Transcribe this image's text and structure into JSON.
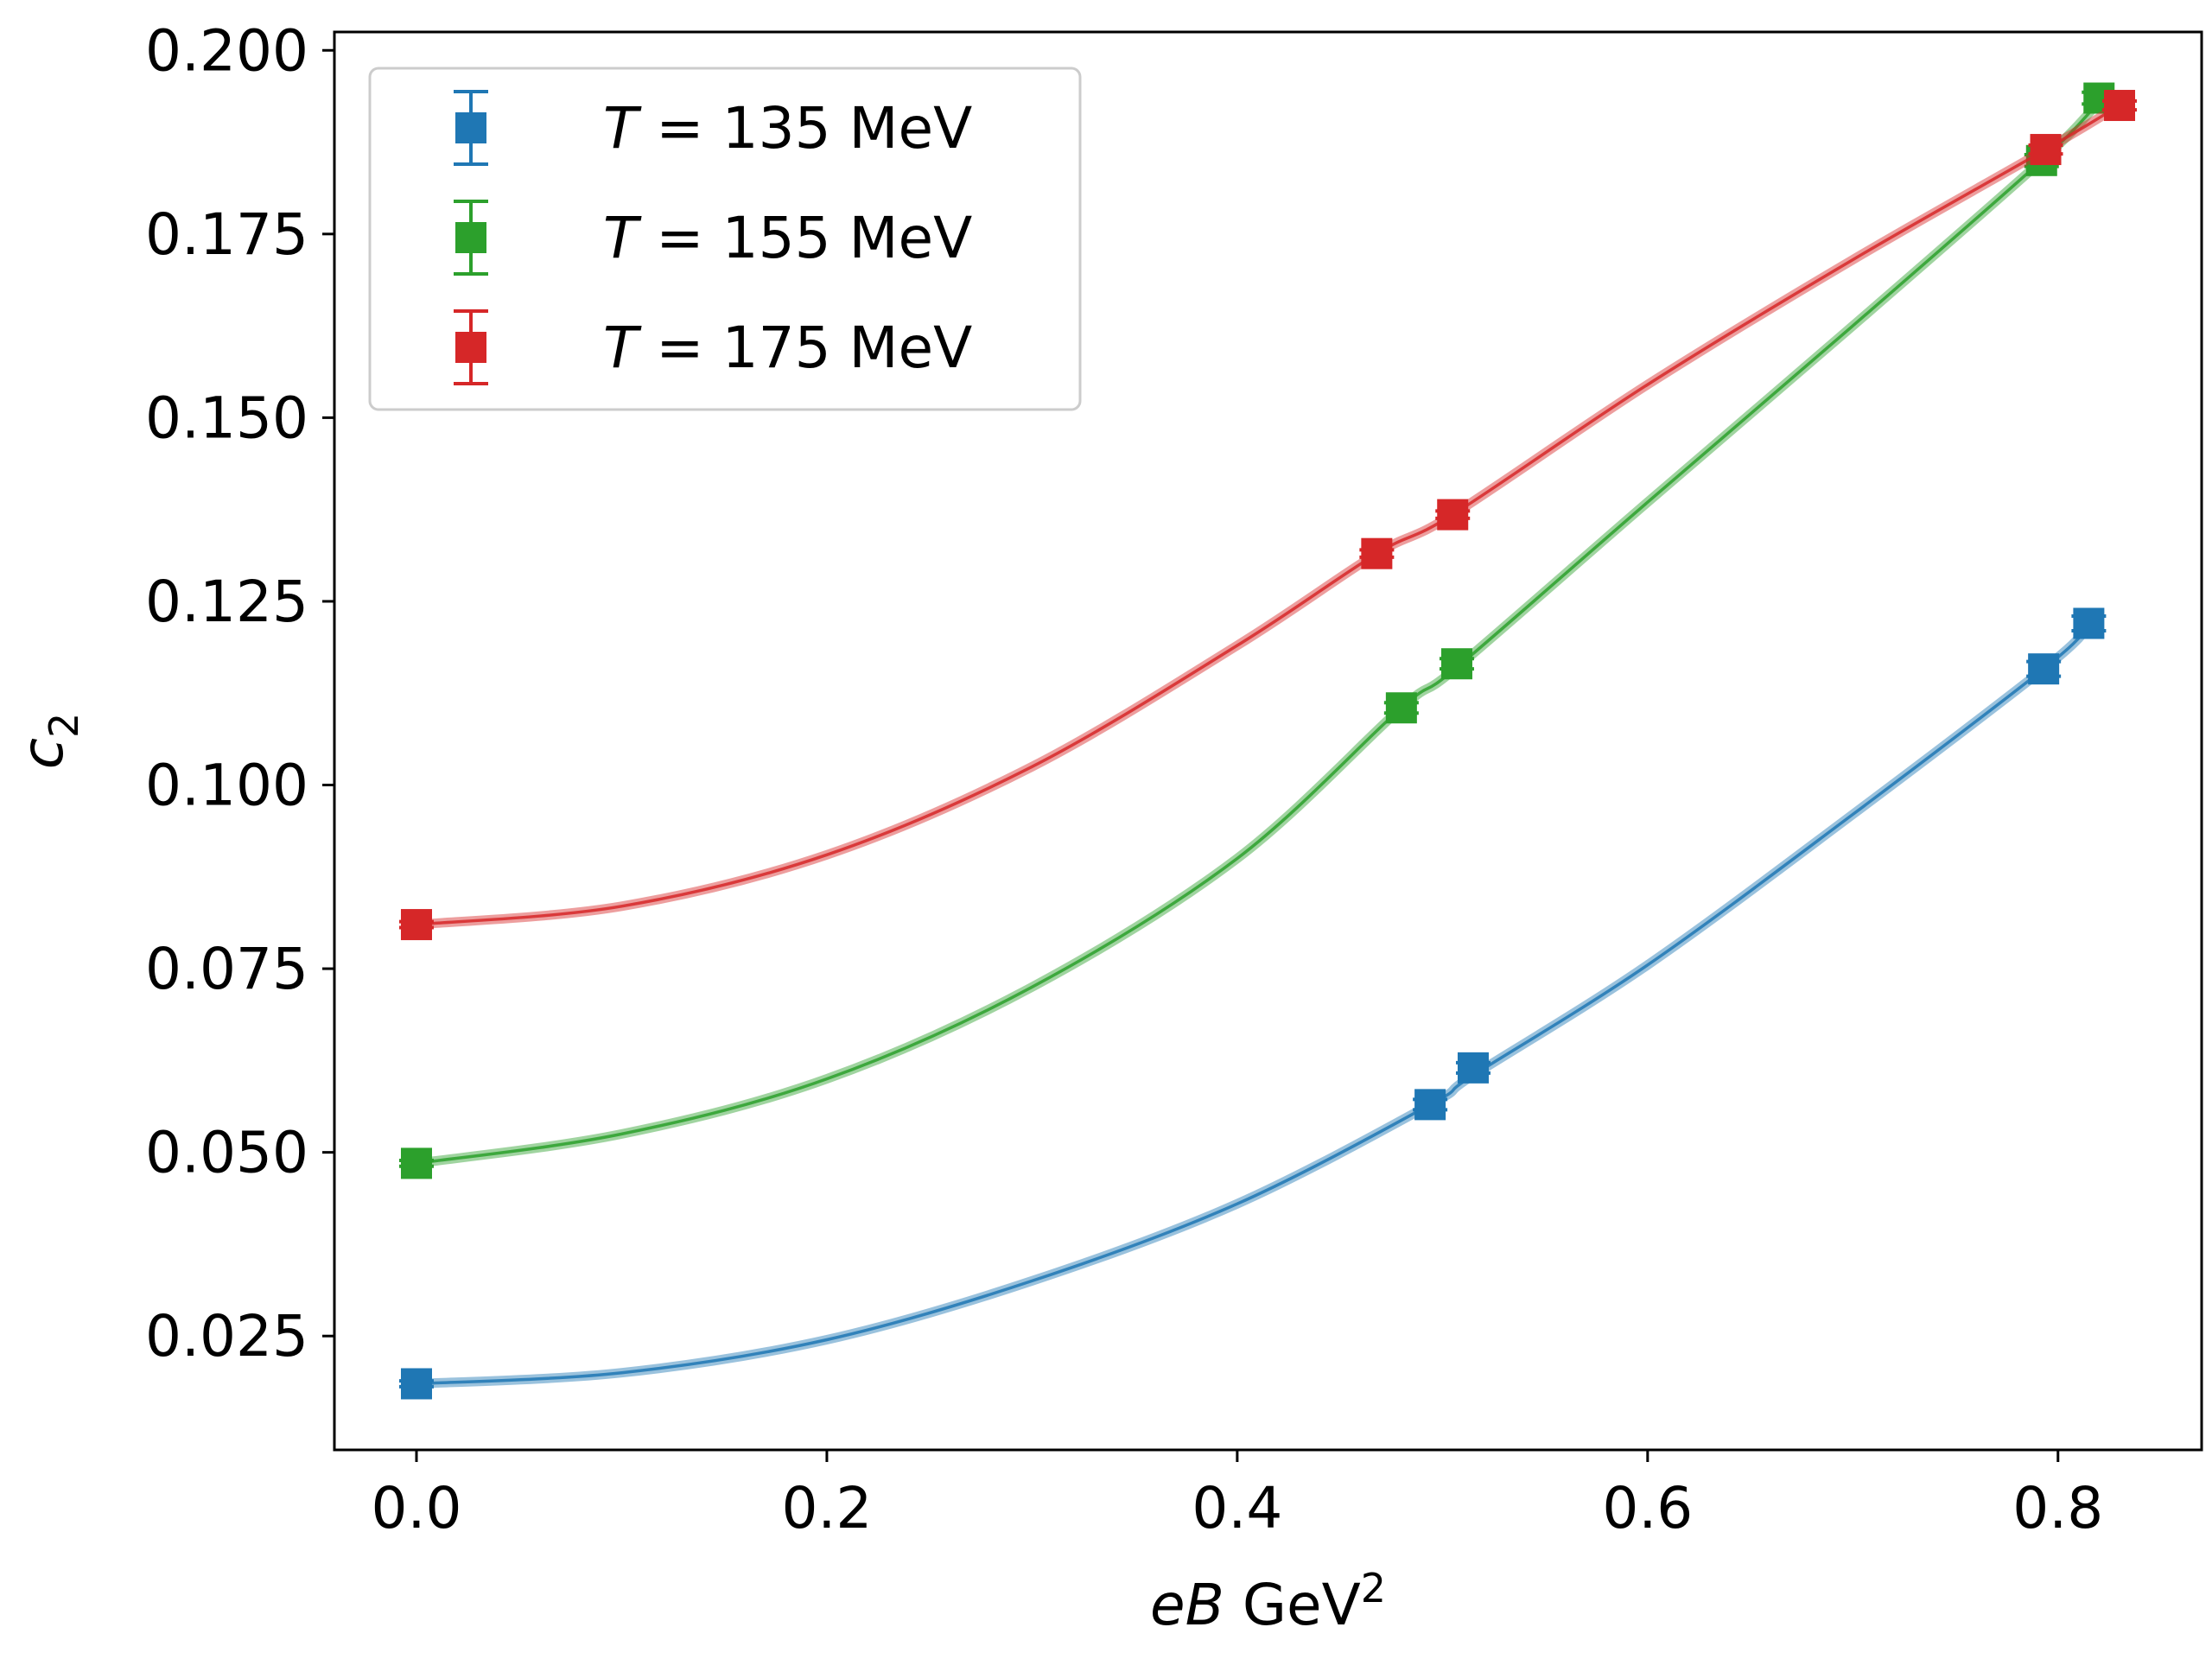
{
  "chart_data": {
    "type": "scatter",
    "title": "",
    "xlabel": {
      "italic": "eB",
      "unit": "GeV",
      "sup": "2"
    },
    "ylabel": {
      "base": "c",
      "sub": "2"
    },
    "xlim": [
      -0.04,
      0.87
    ],
    "ylim": [
      0.0095,
      0.2025
    ],
    "xticks": [
      0.0,
      0.2,
      0.4,
      0.6,
      0.8
    ],
    "xtick_labels": [
      "0.0",
      "0.2",
      "0.4",
      "0.6",
      "0.8"
    ],
    "yticks": [
      0.025,
      0.05,
      0.075,
      0.1,
      0.125,
      0.15,
      0.175,
      0.2
    ],
    "ytick_labels": [
      "0.025",
      "0.050",
      "0.075",
      "0.100",
      "0.125",
      "0.150",
      "0.175",
      "0.200"
    ],
    "grid": false,
    "legend_position": "top-left",
    "series": [
      {
        "name": "T = 135 MeV",
        "legend_italic": "T",
        "legend_rest": "= 135 MeV",
        "color": "#1f77b4",
        "x": [
          0.0,
          0.494,
          0.515,
          0.793,
          0.815
        ],
        "y": [
          0.0185,
          0.0565,
          0.0615,
          0.1158,
          0.122
        ],
        "yerr": [
          0.0004,
          0.0007,
          0.0007,
          0.001,
          0.001
        ],
        "fit_x": [
          0.0,
          0.1,
          0.2,
          0.3,
          0.4,
          0.494,
          0.515,
          0.6,
          0.7,
          0.793,
          0.815
        ],
        "fit_y": [
          0.0185,
          0.02,
          0.0245,
          0.0325,
          0.043,
          0.0565,
          0.0605,
          0.0755,
          0.096,
          0.1158,
          0.1215
        ]
      },
      {
        "name": "T = 155 MeV",
        "legend_italic": "T",
        "legend_rest": "= 155 MeV",
        "color": "#2ca02c",
        "x": [
          0.0,
          0.48,
          0.507,
          0.792,
          0.82
        ],
        "y": [
          0.0485,
          0.1105,
          0.1165,
          0.185,
          0.1935
        ],
        "yerr": [
          0.0004,
          0.0007,
          0.0007,
          0.0008,
          0.0008
        ],
        "fit_x": [
          0.0,
          0.1,
          0.2,
          0.3,
          0.4,
          0.48,
          0.507,
          0.6,
          0.7,
          0.792,
          0.82
        ],
        "fit_y": [
          0.0485,
          0.0525,
          0.06,
          0.0725,
          0.09,
          0.1105,
          0.116,
          0.1385,
          0.1625,
          0.185,
          0.193
        ]
      },
      {
        "name": "T = 175 MeV",
        "legend_italic": "T",
        "legend_rest": "= 175 MeV",
        "color": "#d62728",
        "x": [
          0.0,
          0.468,
          0.505,
          0.794,
          0.83
        ],
        "y": [
          0.081,
          0.1315,
          0.1368,
          0.1865,
          0.1925
        ],
        "yerr": [
          0.0004,
          0.0005,
          0.0005,
          0.0006,
          0.0006
        ],
        "fit_x": [
          0.0,
          0.1,
          0.2,
          0.3,
          0.4,
          0.468,
          0.505,
          0.6,
          0.7,
          0.794,
          0.83
        ],
        "fit_y": [
          0.081,
          0.0835,
          0.0905,
          0.1025,
          0.119,
          0.1315,
          0.1368,
          0.1545,
          0.1715,
          0.1865,
          0.1925
        ]
      }
    ]
  }
}
